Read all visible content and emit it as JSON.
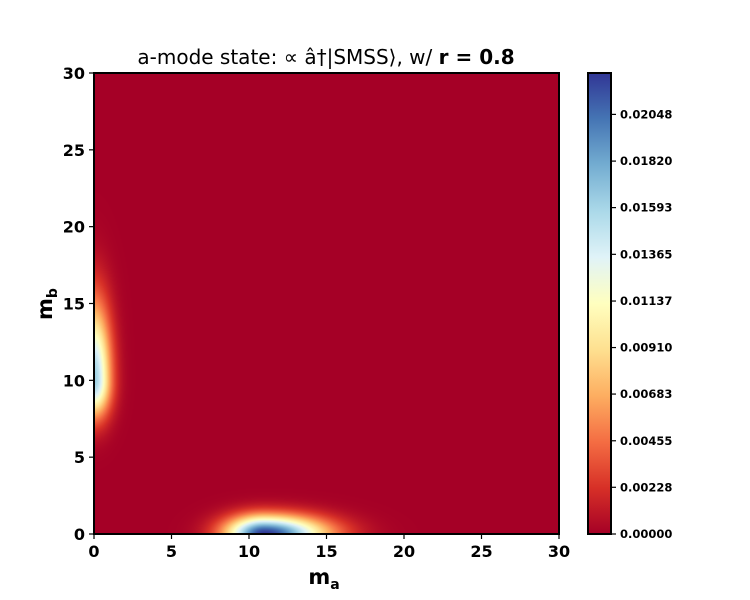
{
  "chart_data": {
    "type": "heatmap",
    "title_plain": "a-mode state: ",
    "title_math": "∝ â†|SMSS⟩, w/ ",
    "title_bold": "r = 0.8",
    "xlabel": "m",
    "xlabel_sub": "a",
    "ylabel": "m",
    "ylabel_sub": "b",
    "xlim": [
      0,
      30
    ],
    "ylim": [
      0,
      30
    ],
    "xticks": [
      "0",
      "5",
      "10",
      "15",
      "20",
      "25",
      "30"
    ],
    "yticks": [
      "0",
      "5",
      "10",
      "15",
      "20",
      "25",
      "30"
    ],
    "colormap": "RdYlBu",
    "colorbar": {
      "min": 0.0,
      "max": 0.0225,
      "ticks": [
        "0.00000",
        "0.00228",
        "0.00455",
        "0.00683",
        "0.00910",
        "0.01137",
        "0.01365",
        "0.01593",
        "0.01820",
        "0.02048"
      ]
    },
    "peaks": [
      {
        "m_a": 11,
        "m_b": 0,
        "value": 0.0225
      },
      {
        "m_a": 0,
        "m_b": 10,
        "value": 0.0163
      }
    ]
  }
}
